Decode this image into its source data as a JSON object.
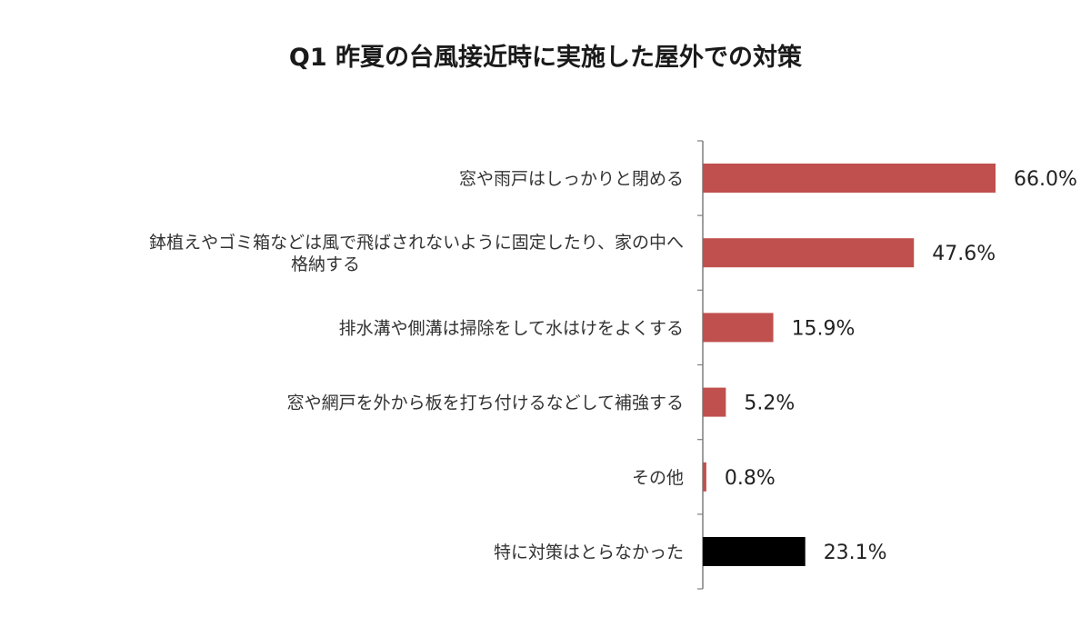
{
  "chart_data": {
    "type": "bar",
    "orientation": "horizontal",
    "title": "Q1 昨夏の台風接近時に実施した屋外での対策",
    "xlabel": "",
    "ylabel": "",
    "xlim": [
      0,
      70
    ],
    "grid": false,
    "legend": "none",
    "categories": [
      [
        "窓や雨戸はしっかりと閉める"
      ],
      [
        "鉢植えやゴミ箱などは風で飛ばされないように固定したり、家の中へ",
        "格納する"
      ],
      [
        "排水溝や側溝は掃除をして水はけをよくする"
      ],
      [
        "窓や網戸を外から板を打ち付けるなどして補強する"
      ],
      [
        "その他"
      ],
      [
        "特に対策はとらなかった"
      ]
    ],
    "values": [
      66.0,
      47.6,
      15.9,
      5.2,
      0.8,
      23.1
    ],
    "value_labels": [
      "66.0%",
      "47.6%",
      "15.9%",
      "5.2%",
      "0.8%",
      "23.1%"
    ],
    "colors": [
      "#c0504d",
      "#c0504d",
      "#c0504d",
      "#c0504d",
      "#c0504d",
      "#000000"
    ]
  }
}
